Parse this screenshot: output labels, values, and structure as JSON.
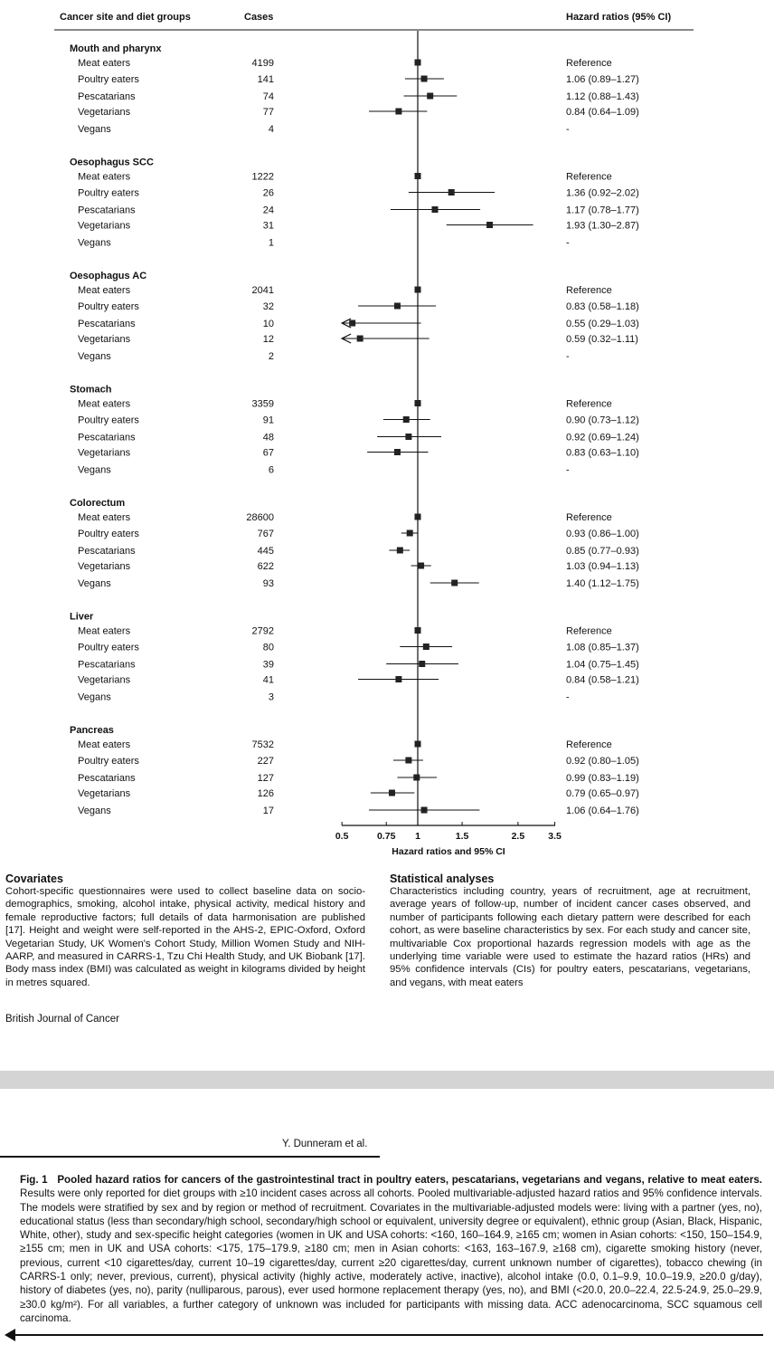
{
  "chart_data": {
    "type": "forest",
    "headers": {
      "site": "Cancer site and diet groups",
      "cases": "Cases",
      "hr": "Hazard ratios (95% CI)"
    },
    "xlabel": "Hazard ratios and 95% CI",
    "xscale": "log",
    "xlim": [
      0.5,
      3.5
    ],
    "ticks": [
      0.5,
      0.75,
      1,
      1.5,
      2.5,
      3.5
    ],
    "tick_labels": [
      "0.5",
      "0.75",
      "1",
      "1.5",
      "2.5",
      "3.5"
    ],
    "groups": [
      {
        "site": "Mouth and pharynx",
        "rows": [
          {
            "diet": "Meat eaters",
            "cases": "4199",
            "hr": 1,
            "lo": null,
            "hi": null,
            "label": "Reference"
          },
          {
            "diet": "Poultry eaters",
            "cases": "141",
            "hr": 1.06,
            "lo": 0.89,
            "hi": 1.27,
            "label": "1.06 (0.89–1.27)"
          },
          {
            "diet": "Pescatarians",
            "cases": "74",
            "hr": 1.12,
            "lo": 0.88,
            "hi": 1.43,
            "label": "1.12 (0.88–1.43)"
          },
          {
            "diet": "Vegetarians",
            "cases": "77",
            "hr": 0.84,
            "lo": 0.64,
            "hi": 1.09,
            "label": "0.84 (0.64–1.09)"
          },
          {
            "diet": "Vegans",
            "cases": "4",
            "hr": null,
            "lo": null,
            "hi": null,
            "label": "-"
          }
        ]
      },
      {
        "site": "Oesophagus SCC",
        "rows": [
          {
            "diet": "Meat eaters",
            "cases": "1222",
            "hr": 1,
            "lo": null,
            "hi": null,
            "label": "Reference"
          },
          {
            "diet": "Poultry eaters",
            "cases": "26",
            "hr": 1.36,
            "lo": 0.92,
            "hi": 2.02,
            "label": "1.36 (0.92–2.02)"
          },
          {
            "diet": "Pescatarians",
            "cases": "24",
            "hr": 1.17,
            "lo": 0.78,
            "hi": 1.77,
            "label": "1.17 (0.78–1.77)"
          },
          {
            "diet": "Vegetarians",
            "cases": "31",
            "hr": 1.93,
            "lo": 1.3,
            "hi": 2.87,
            "label": "1.93 (1.30–2.87)"
          },
          {
            "diet": "Vegans",
            "cases": "1",
            "hr": null,
            "lo": null,
            "hi": null,
            "label": "-"
          }
        ]
      },
      {
        "site": "Oesophagus AC",
        "rows": [
          {
            "diet": "Meat eaters",
            "cases": "2041",
            "hr": 1,
            "lo": null,
            "hi": null,
            "label": "Reference"
          },
          {
            "diet": "Poultry eaters",
            "cases": "32",
            "hr": 0.83,
            "lo": 0.58,
            "hi": 1.18,
            "label": "0.83 (0.58–1.18)"
          },
          {
            "diet": "Pescatarians",
            "cases": "10",
            "hr": 0.55,
            "lo": 0.29,
            "hi": 1.03,
            "label": "0.55 (0.29–1.03)"
          },
          {
            "diet": "Vegetarians",
            "cases": "12",
            "hr": 0.59,
            "lo": 0.32,
            "hi": 1.11,
            "label": "0.59 (0.32–1.11)"
          },
          {
            "diet": "Vegans",
            "cases": "2",
            "hr": null,
            "lo": null,
            "hi": null,
            "label": "-"
          }
        ]
      },
      {
        "site": "Stomach",
        "rows": [
          {
            "diet": "Meat eaters",
            "cases": "3359",
            "hr": 1,
            "lo": null,
            "hi": null,
            "label": "Reference"
          },
          {
            "diet": "Poultry eaters",
            "cases": "91",
            "hr": 0.9,
            "lo": 0.73,
            "hi": 1.12,
            "label": "0.90 (0.73–1.12)"
          },
          {
            "diet": "Pescatarians",
            "cases": "48",
            "hr": 0.92,
            "lo": 0.69,
            "hi": 1.24,
            "label": "0.92 (0.69–1.24)"
          },
          {
            "diet": "Vegetarians",
            "cases": "67",
            "hr": 0.83,
            "lo": 0.63,
            "hi": 1.1,
            "label": "0.83 (0.63–1.10)"
          },
          {
            "diet": "Vegans",
            "cases": "6",
            "hr": null,
            "lo": null,
            "hi": null,
            "label": "-"
          }
        ]
      },
      {
        "site": "Colorectum",
        "rows": [
          {
            "diet": "Meat eaters",
            "cases": "28600",
            "hr": 1,
            "lo": null,
            "hi": null,
            "label": "Reference"
          },
          {
            "diet": "Poultry eaters",
            "cases": "767",
            "hr": 0.93,
            "lo": 0.86,
            "hi": 1.0,
            "label": "0.93 (0.86–1.00)"
          },
          {
            "diet": "Pescatarians",
            "cases": "445",
            "hr": 0.85,
            "lo": 0.77,
            "hi": 0.93,
            "label": "0.85 (0.77–0.93)"
          },
          {
            "diet": "Vegetarians",
            "cases": "622",
            "hr": 1.03,
            "lo": 0.94,
            "hi": 1.13,
            "label": "1.03 (0.94–1.13)"
          },
          {
            "diet": "Vegans",
            "cases": "93",
            "hr": 1.4,
            "lo": 1.12,
            "hi": 1.75,
            "label": "1.40 (1.12–1.75)"
          }
        ]
      },
      {
        "site": "Liver",
        "rows": [
          {
            "diet": "Meat eaters",
            "cases": "2792",
            "hr": 1,
            "lo": null,
            "hi": null,
            "label": "Reference"
          },
          {
            "diet": "Poultry eaters",
            "cases": "80",
            "hr": 1.08,
            "lo": 0.85,
            "hi": 1.37,
            "label": "1.08 (0.85–1.37)"
          },
          {
            "diet": "Pescatarians",
            "cases": "39",
            "hr": 1.04,
            "lo": 0.75,
            "hi": 1.45,
            "label": "1.04 (0.75–1.45)"
          },
          {
            "diet": "Vegetarians",
            "cases": "41",
            "hr": 0.84,
            "lo": 0.58,
            "hi": 1.21,
            "label": "0.84 (0.58–1.21)"
          },
          {
            "diet": "Vegans",
            "cases": "3",
            "hr": null,
            "lo": null,
            "hi": null,
            "label": "-"
          }
        ]
      },
      {
        "site": "Pancreas",
        "rows": [
          {
            "diet": "Meat eaters",
            "cases": "7532",
            "hr": 1,
            "lo": null,
            "hi": null,
            "label": "Reference"
          },
          {
            "diet": "Poultry eaters",
            "cases": "227",
            "hr": 0.92,
            "lo": 0.8,
            "hi": 1.05,
            "label": "0.92 (0.80–1.05)"
          },
          {
            "diet": "Pescatarians",
            "cases": "127",
            "hr": 0.99,
            "lo": 0.83,
            "hi": 1.19,
            "label": "0.99 (0.83–1.19)"
          },
          {
            "diet": "Vegetarians",
            "cases": "126",
            "hr": 0.79,
            "lo": 0.65,
            "hi": 0.97,
            "label": "0.79 (0.65–0.97)"
          },
          {
            "diet": "Vegans",
            "cases": "17",
            "hr": 1.06,
            "lo": 0.64,
            "hi": 1.76,
            "label": "1.06 (0.64–1.76)"
          }
        ]
      }
    ]
  },
  "covariates": {
    "title": "Covariates",
    "text": "Cohort-specific questionnaires were used to collect baseline data on socio-demographics, smoking, alcohol intake, physical activity, medical history and female reproductive factors; full details of data harmonisation are published [17]. Height and weight were self-reported in the AHS-2, EPIC-Oxford, Oxford Vegetarian Study, UK Women's Cohort Study, Million Women Study and NIH-AARP, and measured in CARRS-1, Tzu Chi Health Study, and UK Biobank [17]. Body mass index (BMI) was calculated as weight in kilograms divided by height in metres squared."
  },
  "statistical": {
    "title": "Statistical analyses",
    "text": "Characteristics including country, years of recruitment, age at recruitment, average years of follow-up, number of incident cancer cases observed, and number of participants following each dietary pattern were described for each cohort, as were baseline characteristics by sex. For each study and cancer site, multivariable Cox proportional hazards regression models with age as the underlying time variable were used to estimate the hazard ratios (HRs) and 95% confidence intervals (CIs) for poultry eaters, pescatarians, vegetarians, and vegans, with meat eaters"
  },
  "journal": "British Journal of Cancer",
  "author": "Y. Dunneram et al.",
  "caption": {
    "label": "Fig. 1",
    "title": "Pooled hazard ratios for cancers of the gastrointestinal tract in poultry eaters, pescatarians, vegetarians and vegans, relative to meat eaters.",
    "text": "Results were only reported for diet groups with ≥10 incident cases across all cohorts. Pooled multivariable-adjusted hazard ratios and 95% confidence intervals. The models were stratified by sex and by region or method of recruitment. Covariates in the multivariable-adjusted models were: living with a partner (yes, no), educational status (less than secondary/high school, secondary/high school or equivalent, university degree or equivalent), ethnic group (Asian, Black, Hispanic, White, other), study and sex-specific height categories (women in UK and USA cohorts: <160, 160–164.9, ≥165 cm; women in Asian cohorts: <150, 150–154.9, ≥155 cm; men in UK and USA cohorts: <175, 175–179.9, ≥180 cm; men in Asian cohorts: <163, 163–167.9, ≥168 cm), cigarette smoking history (never, previous, current <10 cigarettes/day, current 10–19 cigarettes/day, current ≥20 cigarettes/day, current unknown number of cigarettes), tobacco chewing (in CARRS-1 only; never, previous, current), physical activity (highly active, moderately active, inactive), alcohol intake (0.0, 0.1–9.9, 10.0–19.9, ≥20.0 g/day), history of diabetes (yes, no), parity (nulliparous, parous), ever used hormone replacement therapy (yes, no), and BMI (<20.0, 20.0–22.4, 22.5-24.9, 25.0–29.9, ≥30.0 kg/m²). For all variables, a further category of unknown was included for participants with missing data. ACC adenocarcinoma, SCC squamous cell carcinoma."
  }
}
